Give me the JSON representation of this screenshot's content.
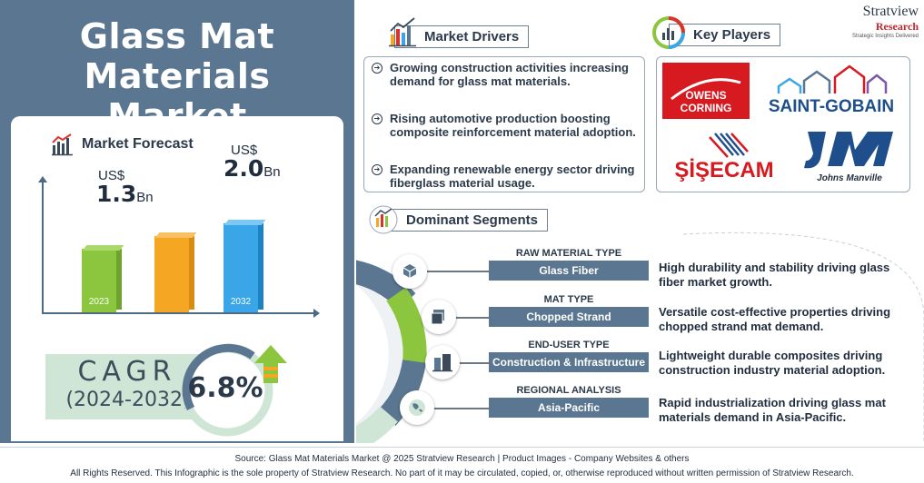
{
  "title": {
    "line1": "Glass Mat",
    "line2": "Materials Market"
  },
  "forecast": {
    "heading": "Market Forecast",
    "bars": [
      {
        "year": "2023",
        "prefix": "US$",
        "value": "1.3",
        "unit": "Bn",
        "color": "#8cc63f"
      },
      {
        "year": "",
        "prefix": "",
        "value": "",
        "unit": "",
        "color": "#f5a623"
      },
      {
        "year": "2032",
        "prefix": "US$",
        "value": "2.0",
        "unit": "Bn",
        "color": "#3aa6e8"
      }
    ]
  },
  "chart_data": {
    "type": "bar",
    "categories": [
      "2023",
      "",
      "2032"
    ],
    "values": [
      1.3,
      null,
      2.0
    ]
  },
  "cagr": {
    "label": "CAGR",
    "period": "(2024-2032)",
    "value": "6.8%"
  },
  "drivers": {
    "heading": "Market Drivers",
    "items": [
      "Growing construction activities increasing demand for glass mat materials.",
      "Rising automotive production boosting composite reinforcement material adoption.",
      "Expanding renewable energy sector driving fiberglass material usage."
    ]
  },
  "players": {
    "heading": "Key Players",
    "logos": [
      "OWENS CORNING",
      "SAINT-GOBAIN",
      "ŞİŞECAM",
      "Johns Manville"
    ]
  },
  "brand": {
    "name": "Stratview",
    "sub": "Research",
    "tagline": "Strategic Insights Delivered"
  },
  "segments": {
    "heading": "Dominant Segments",
    "items": [
      {
        "type": "RAW MATERIAL TYPE",
        "value": "Glass Fiber",
        "desc": "High durability and stability driving glass fiber market growth."
      },
      {
        "type": "MAT TYPE",
        "value": "Chopped Strand",
        "desc": "Versatile cost-effective properties driving chopped strand mat demand."
      },
      {
        "type": "END-USER TYPE",
        "value": "Construction & Infrastructure",
        "desc": "Lightweight durable composites driving construction industry material adoption."
      },
      {
        "type": "REGIONAL ANALYSIS",
        "value": "Asia-Pacific",
        "desc": "Rapid industrialization driving glass mat materials demand in Asia-Pacific."
      }
    ]
  },
  "footer": {
    "source": "Source: Glass Mat Materials Market @ 2025 Stratview Research | Product Images - Company Websites & others",
    "rights": "All Rights Reserved. This Infographic is the sole property of Stratview Research. No part of it may be circulated, copied, or, otherwise reproduced without written permission of Stratview Research."
  }
}
